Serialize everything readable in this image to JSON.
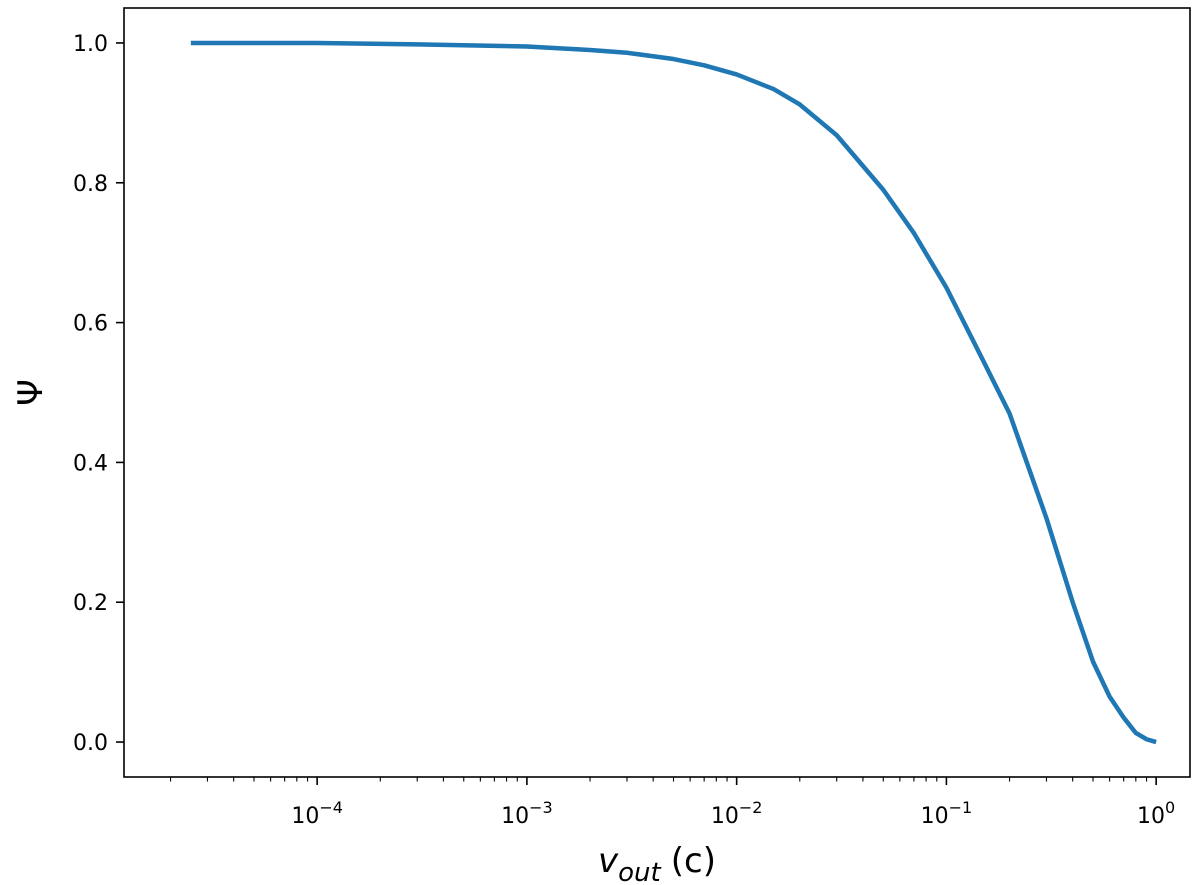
{
  "chart_data": {
    "type": "line",
    "title": "",
    "xlabel": {
      "main": "v",
      "sub": "out",
      "unit": "(c)"
    },
    "ylabel": "Ψ",
    "xscale": "log",
    "xlim": [
      1.2e-05,
      1.45
    ],
    "ylim": [
      -0.05,
      1.05
    ],
    "grid": false,
    "legend": "none",
    "x_ticks": [
      {
        "value": 0.0001,
        "base": "10",
        "exp": "−4"
      },
      {
        "value": 0.001,
        "base": "10",
        "exp": "−3"
      },
      {
        "value": 0.01,
        "base": "10",
        "exp": "−2"
      },
      {
        "value": 0.1,
        "base": "10",
        "exp": "−1"
      },
      {
        "value": 1,
        "base": "10",
        "exp": "0"
      }
    ],
    "y_ticks": [
      {
        "value": 0.0,
        "label": "0.0"
      },
      {
        "value": 0.2,
        "label": "0.2"
      },
      {
        "value": 0.4,
        "label": "0.4"
      },
      {
        "value": 0.6,
        "label": "0.6"
      },
      {
        "value": 0.8,
        "label": "0.8"
      },
      {
        "value": 1.0,
        "label": "1.0"
      }
    ],
    "series": [
      {
        "color": "#1f77b4",
        "x": [
          2.5e-05,
          0.0001,
          0.0003,
          0.001,
          0.002,
          0.003,
          0.005,
          0.007,
          0.01,
          0.015,
          0.02,
          0.03,
          0.05,
          0.07,
          0.1,
          0.15,
          0.2,
          0.3,
          0.4,
          0.5,
          0.6,
          0.7,
          0.8,
          0.9,
          1.0
        ],
        "y": [
          1.0,
          1.0,
          0.998,
          0.995,
          0.99,
          0.986,
          0.977,
          0.968,
          0.955,
          0.934,
          0.912,
          0.868,
          0.79,
          0.728,
          0.65,
          0.545,
          0.47,
          0.32,
          0.2,
          0.115,
          0.065,
          0.035,
          0.013,
          0.004,
          0.0
        ]
      }
    ]
  }
}
